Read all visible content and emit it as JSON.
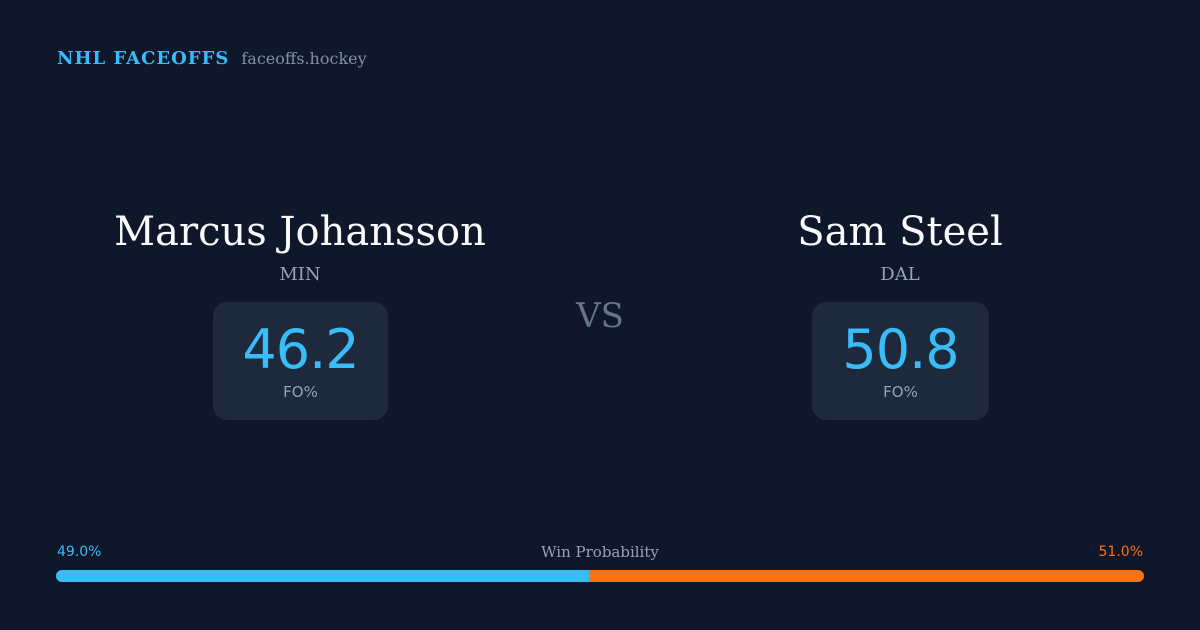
{
  "brand": {
    "name": "NHL FACEOFFS",
    "domain": "faceoffs.hockey"
  },
  "players": [
    {
      "name": "Marcus Johansson",
      "team": "MIN",
      "stat_value": "46.2",
      "stat_label": "FO%"
    },
    {
      "name": "Sam Steel",
      "team": "DAL",
      "stat_value": "50.8",
      "stat_label": "FO%"
    }
  ],
  "vs_label": "VS",
  "win_probability": {
    "title": "Win Probability",
    "left_label": "49.0%",
    "right_label": "51.0%",
    "left_value": 49.0,
    "right_value": 51.0,
    "left_color": "#38bdf8",
    "right_color": "#f97316"
  }
}
